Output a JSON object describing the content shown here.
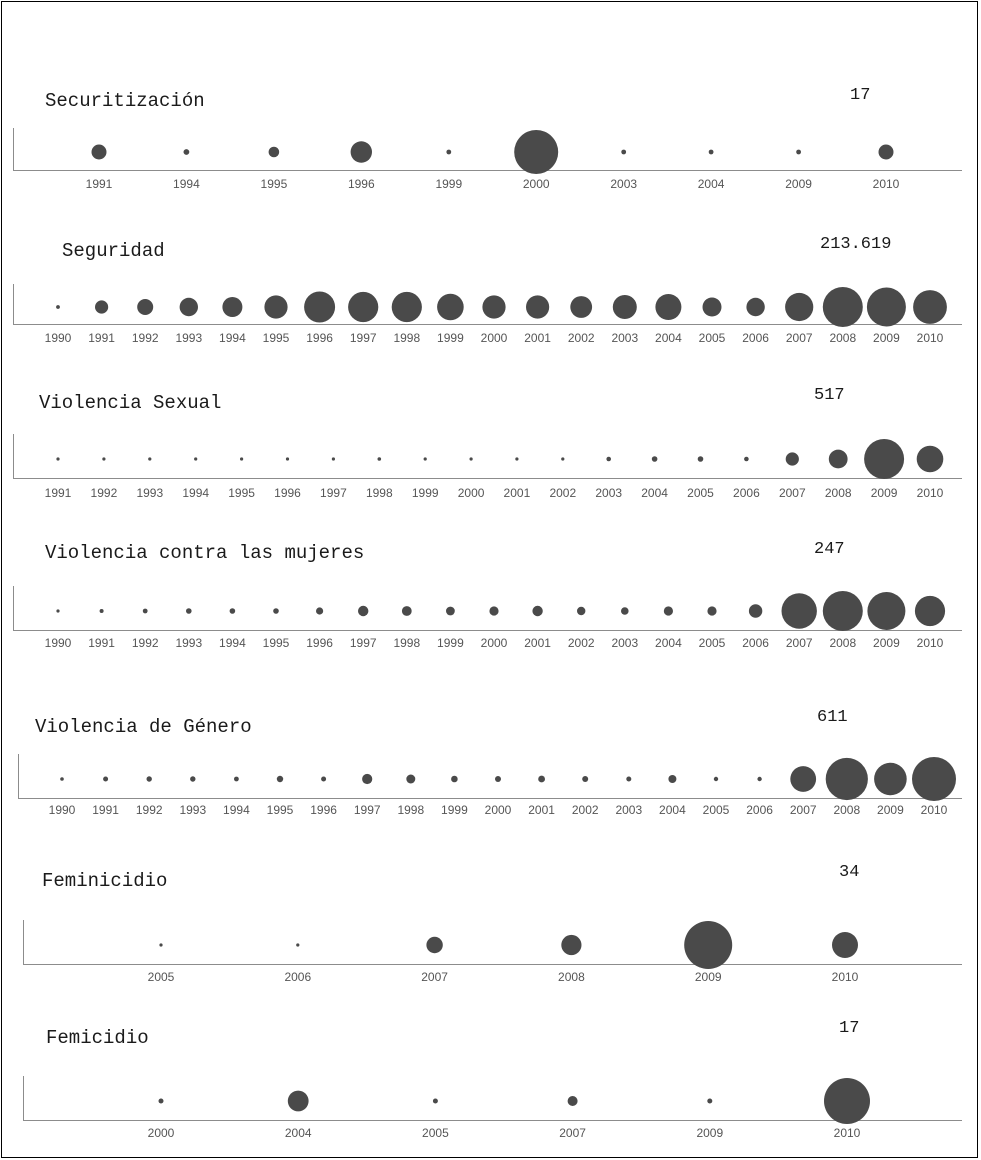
{
  "colors": {
    "bubble": "#4a4a4a",
    "axis": "#8c8c8c",
    "text": "#1a1a1a",
    "tick": "#555555"
  },
  "chart_data": [
    {
      "type": "scatter",
      "title": "Securitización",
      "max_label": "17",
      "max_value": 17,
      "x": [
        "1991",
        "1994",
        "1995",
        "1996",
        "1999",
        "2000",
        "2003",
        "2004",
        "2009",
        "2010"
      ],
      "values": [
        2,
        0.3,
        1,
        4,
        0.2,
        17,
        0.2,
        0.2,
        0.2,
        2
      ]
    },
    {
      "type": "scatter",
      "title": "Seguridad",
      "max_label": "213.619",
      "max_value": 213619,
      "x": [
        "1990",
        "1991",
        "1992",
        "1993",
        "1994",
        "1995",
        "1996",
        "1997",
        "1998",
        "1999",
        "2000",
        "2001",
        "2002",
        "2003",
        "2004",
        "2005",
        "2006",
        "2007",
        "2008",
        "2009",
        "2010"
      ],
      "values": [
        2000,
        23000,
        34000,
        45000,
        53000,
        72000,
        129000,
        121000,
        121000,
        95000,
        72000,
        72000,
        64000,
        77000,
        90000,
        48000,
        45000,
        106000,
        213619,
        203000,
        153000
      ]
    },
    {
      "type": "scatter",
      "title": "Violencia Sexual",
      "max_label": "517",
      "max_value": 517,
      "x": [
        "1991",
        "1992",
        "1993",
        "1994",
        "1995",
        "1996",
        "1997",
        "1998",
        "1999",
        "2000",
        "2001",
        "2002",
        "2003",
        "2004",
        "2005",
        "2006",
        "2007",
        "2008",
        "2009",
        "2010"
      ],
      "values": [
        0.5,
        1,
        3,
        1.5,
        1,
        3,
        3,
        4,
        3,
        2,
        3,
        1,
        7,
        10,
        10,
        7,
        57,
        115,
        517,
        230
      ]
    },
    {
      "type": "scatter",
      "title": "Violencia contra las mujeres",
      "max_label": "247",
      "max_value": 247,
      "x": [
        "1990",
        "1991",
        "1992",
        "1993",
        "1994",
        "1995",
        "1996",
        "1997",
        "1998",
        "1999",
        "2000",
        "2001",
        "2002",
        "2003",
        "2004",
        "2005",
        "2006",
        "2007",
        "2008",
        "2009",
        "2010"
      ],
      "values": [
        1,
        2.5,
        3.5,
        5,
        5,
        5,
        8,
        17,
        15,
        12,
        13,
        17,
        11,
        9,
        13,
        13,
        28,
        194,
        247,
        224,
        140
      ]
    },
    {
      "type": "scatter",
      "title": "Violencia de Género",
      "max_label": "611",
      "max_value": 611,
      "x": [
        "1990",
        "1991",
        "1992",
        "1993",
        "1994",
        "1995",
        "1996",
        "1997",
        "1998",
        "1999",
        "2000",
        "2001",
        "2002",
        "2003",
        "2004",
        "2005",
        "2006",
        "2007",
        "2008",
        "2009",
        "2010"
      ],
      "values": [
        4,
        8,
        9,
        9,
        7,
        13,
        8,
        33,
        26,
        14,
        11,
        15,
        11,
        8,
        20,
        6,
        6,
        209,
        564,
        335,
        611
      ]
    },
    {
      "type": "scatter",
      "title": "Feminicidio",
      "max_label": "34",
      "max_value": 34,
      "x": [
        "2005",
        "2006",
        "2007",
        "2008",
        "2009",
        "2010"
      ],
      "values": [
        0.1,
        0.1,
        4,
        6,
        34,
        10
      ]
    },
    {
      "type": "scatter",
      "title": "Femicidio",
      "max_label": "17",
      "max_value": 17,
      "x": [
        "2000",
        "2004",
        "2005",
        "2007",
        "2009",
        "2010"
      ],
      "values": [
        0.2,
        3.5,
        0.2,
        0.8,
        0.2,
        17
      ]
    }
  ]
}
